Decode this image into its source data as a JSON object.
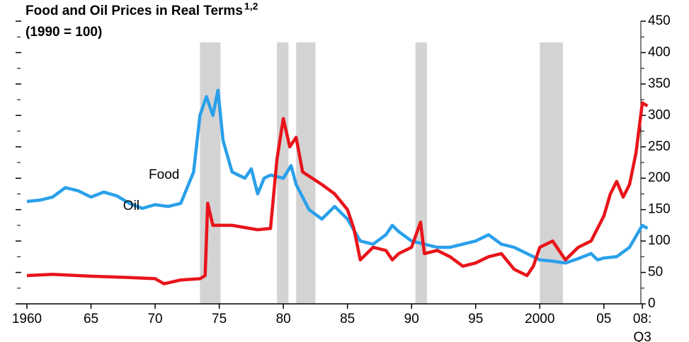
{
  "chart_data": {
    "type": "line",
    "title": "Food and Oil Prices in Real Terms",
    "title_superscript": "1,2",
    "subtitle": "(1990 = 100)",
    "xlim": [
      1960,
      2008.6
    ],
    "ylim": [
      0,
      450
    ],
    "yticks": [
      0,
      50,
      100,
      150,
      200,
      250,
      300,
      350,
      400,
      450
    ],
    "xticks": [
      {
        "value": 1960,
        "label": "1960"
      },
      {
        "value": 1965,
        "label": "65"
      },
      {
        "value": 1970,
        "label": "70"
      },
      {
        "value": 1975,
        "label": "75"
      },
      {
        "value": 1980,
        "label": "80"
      },
      {
        "value": 1985,
        "label": "85"
      },
      {
        "value": 1990,
        "label": "90"
      },
      {
        "value": 1995,
        "label": "95"
      },
      {
        "value": 2000,
        "label": "2000"
      },
      {
        "value": 2005,
        "label": "05"
      },
      {
        "value": 2008,
        "label": "08:",
        "sublabel": "Q3"
      }
    ],
    "recessions": [
      [
        1973.5,
        1975.1
      ],
      [
        1979.5,
        1980.4
      ],
      [
        1981.0,
        1982.5
      ],
      [
        1990.3,
        1991.2
      ],
      [
        2000.0,
        2001.8
      ]
    ],
    "recession_color": "#d3d3d3",
    "series": [
      {
        "name": "Food",
        "color": "#2aa0ea",
        "x": [
          1960,
          1961,
          1962,
          1963,
          1964,
          1965,
          1966,
          1967,
          1968,
          1969,
          1970,
          1971,
          1972,
          1973,
          1973.5,
          1974,
          1974.5,
          1974.9,
          1975.3,
          1976,
          1977,
          1977.5,
          1978,
          1978.5,
          1979,
          1980,
          1980.6,
          1981,
          1982,
          1983,
          1984,
          1985,
          1986,
          1987,
          1988,
          1988.5,
          1989,
          1990,
          1991,
          1992,
          1993,
          1994,
          1995,
          1996,
          1997,
          1998,
          1999,
          2000,
          2001,
          2002,
          2003,
          2004,
          2004.5,
          2005,
          2006,
          2007,
          2008,
          2008.4
        ],
        "values": [
          163,
          165,
          170,
          185,
          180,
          170,
          178,
          172,
          160,
          152,
          158,
          155,
          160,
          210,
          300,
          330,
          300,
          340,
          260,
          210,
          200,
          215,
          175,
          200,
          205,
          200,
          220,
          190,
          150,
          135,
          155,
          135,
          100,
          95,
          110,
          125,
          115,
          100,
          95,
          90,
          90,
          95,
          100,
          110,
          95,
          90,
          80,
          70,
          68,
          65,
          72,
          80,
          70,
          73,
          75,
          90,
          125,
          120
        ]
      },
      {
        "name": "Oil",
        "color": "#e8141a",
        "x": [
          1960,
          1962,
          1965,
          1968,
          1970,
          1970.7,
          1972,
          1973.5,
          1973.9,
          1974.1,
          1974.5,
          1976,
          1978,
          1979,
          1979.5,
          1980,
          1980.5,
          1981,
          1981.5,
          1983,
          1984,
          1985,
          1985.5,
          1986,
          1987,
          1988,
          1988.5,
          1989,
          1990,
          1990.7,
          1991,
          1992,
          1993,
          1994,
          1995,
          1996,
          1997,
          1998,
          1999,
          1999.5,
          2000,
          2001,
          2002,
          2002.5,
          2003,
          2004,
          2005,
          2005.5,
          2006,
          2006.5,
          2007,
          2007.5,
          2008,
          2008.4
        ],
        "values": [
          45,
          47,
          44,
          42,
          40,
          32,
          38,
          40,
          45,
          160,
          125,
          125,
          118,
          120,
          230,
          295,
          250,
          265,
          210,
          190,
          175,
          150,
          120,
          70,
          90,
          85,
          70,
          80,
          90,
          130,
          80,
          85,
          75,
          60,
          65,
          75,
          80,
          55,
          45,
          60,
          90,
          100,
          70,
          80,
          90,
          100,
          140,
          175,
          195,
          170,
          190,
          240,
          320,
          315
        ]
      }
    ],
    "annotations": [
      {
        "text": "Food",
        "series": 0
      },
      {
        "text": "Oil",
        "series": 1
      }
    ]
  }
}
